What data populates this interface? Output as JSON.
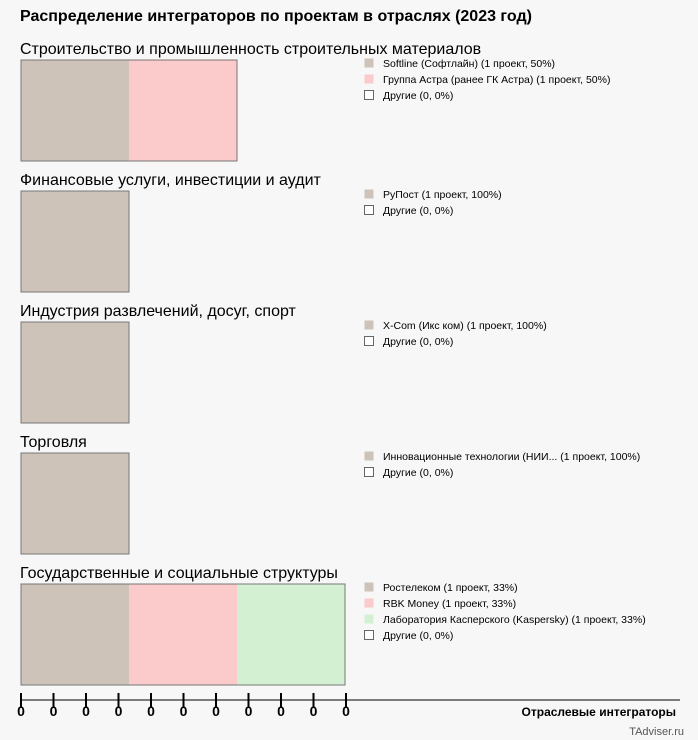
{
  "title": "Распределение интеграторов по проектам в отраслях (2023 год)",
  "footer": "TAdviser.ru",
  "chart_data": {
    "type": "bar",
    "orientation": "horizontal-stacked",
    "title": "Распределение интеграторов по проектам в отраслях (2023 год)",
    "xlabel": "Отраслевые интеграторы",
    "x_tick_labels": [
      "0",
      "0",
      "0",
      "0",
      "0",
      "0",
      "0",
      "0",
      "0",
      "0",
      "0"
    ],
    "grid": false,
    "legend": "right",
    "colors": [
      "#cdc3b8",
      "#fbcaca",
      "#d3f0d3",
      "#ffffff"
    ],
    "panels": [
      {
        "name": "Строительство и промышленность строительных материалов",
        "segments": [
          {
            "label": "Softline (Софтлайн) (1 проект, 50%)",
            "value": 1
          },
          {
            "label": "Группа Астра (ранее ГК Астра) (1 проект, 50%)",
            "value": 1
          },
          {
            "label": "Другие (0, 0%)",
            "value": 0
          }
        ]
      },
      {
        "name": "Финансовые услуги, инвестиции и аудит",
        "segments": [
          {
            "label": "РуПост (1 проект, 100%)",
            "value": 1
          },
          {
            "label": "Другие (0, 0%)",
            "value": 0
          }
        ]
      },
      {
        "name": "Индустрия развлечений, досуг, спорт",
        "segments": [
          {
            "label": "X-Com (Икс ком) (1 проект, 100%)",
            "value": 1
          },
          {
            "label": "Другие (0, 0%)",
            "value": 0
          }
        ]
      },
      {
        "name": "Торговля",
        "segments": [
          {
            "label": "Инновационные технологии (НИИ... (1 проект, 100%)",
            "value": 1
          },
          {
            "label": "Другие (0, 0%)",
            "value": 0
          }
        ]
      },
      {
        "name": "Государственные и социальные структуры",
        "segments": [
          {
            "label": "Ростелеком (1 проект, 33%)",
            "value": 1
          },
          {
            "label": "RBK Money (1 проект, 33%)",
            "value": 1
          },
          {
            "label": "Лаборатория Касперского (Kaspersky) (1 проект, 33%)",
            "value": 1
          },
          {
            "label": "Другие (0, 0%)",
            "value": 0
          }
        ]
      }
    ]
  }
}
